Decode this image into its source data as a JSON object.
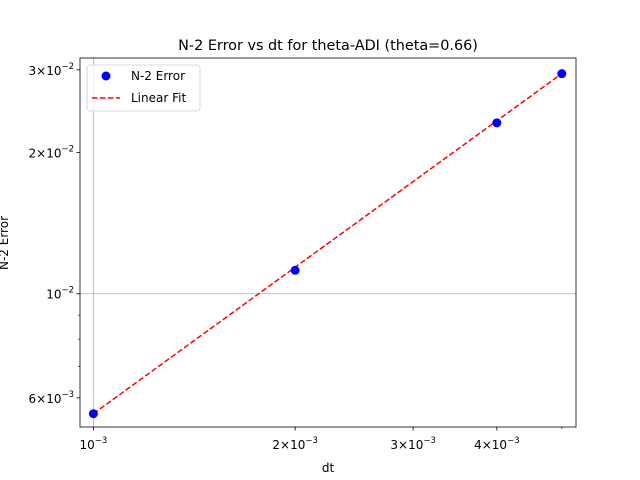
{
  "chart_data": {
    "type": "scatter",
    "title": "N-2 Error vs dt for theta-ADI (theta=0.66)",
    "xlabel": "dt",
    "ylabel": "N-2 Error",
    "xscale": "log",
    "yscale": "log",
    "xlim": [
      0.000955,
      0.00525
    ],
    "ylim": [
      0.0052,
      0.0318
    ],
    "grid": "major only",
    "legend_position": "upper left",
    "x_ticks": [
      {
        "value": 0.001,
        "mantissa": "",
        "exponent": "−3"
      },
      {
        "value": 0.002,
        "mantissa": "2",
        "exponent": "−3"
      },
      {
        "value": 0.003,
        "mantissa": "3",
        "exponent": "−3"
      },
      {
        "value": 0.004,
        "mantissa": "4",
        "exponent": "−3"
      }
    ],
    "y_ticks": [
      {
        "value": 0.006,
        "mantissa": "6",
        "exponent": "−3"
      },
      {
        "value": 0.01,
        "mantissa": "",
        "exponent": "−2"
      },
      {
        "value": 0.02,
        "mantissa": "2",
        "exponent": "−2"
      },
      {
        "value": 0.03,
        "mantissa": "3",
        "exponent": "−2"
      }
    ],
    "x_minor_ticks": [
      0.005
    ],
    "y_minor_ticks": [
      0.007,
      0.008,
      0.009
    ],
    "series": [
      {
        "name": "N-2 Error",
        "kind": "markers",
        "color": "#0000ff",
        "x": [
          0.001,
          0.002,
          0.004,
          0.005
        ],
        "y": [
          0.00555,
          0.01122,
          0.02313,
          0.02945
        ]
      },
      {
        "name": "Linear Fit",
        "kind": "dashed-line",
        "color": "#ff0000",
        "x": [
          0.001,
          0.005
        ],
        "y": [
          0.00555,
          0.02945
        ]
      }
    ]
  }
}
